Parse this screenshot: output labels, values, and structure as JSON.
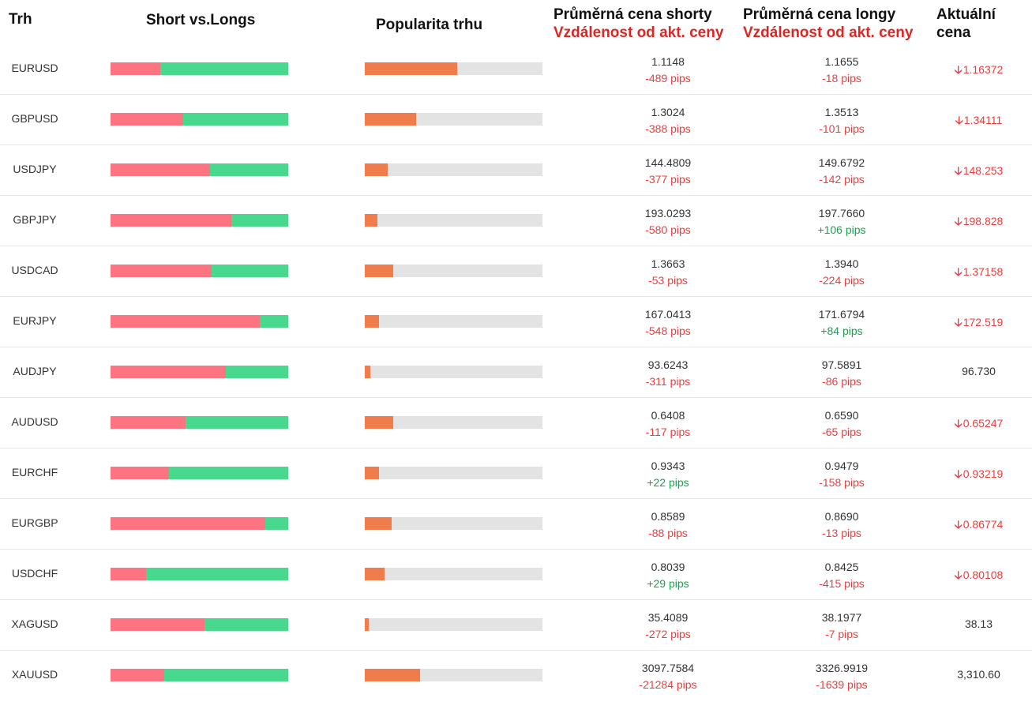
{
  "header": {
    "market": "Trh",
    "short_vs_longs": "Short vs.Longs",
    "popularity": "Popularita trhu",
    "avg_short_line1": "Průměrná cena shorty",
    "avg_short_line2": "Vzdálenost od akt. ceny",
    "avg_long_line1": "Průměrná cena longy",
    "avg_long_line2": "Vzdálenost od akt. ceny",
    "current_line1": "Aktuální",
    "current_line2": "cena"
  },
  "colors": {
    "short": "#fc7481",
    "long": "#48d98e",
    "popularity": "#f07c4c",
    "popularity_track": "#e3e3e3",
    "negative": "#ee3c3c",
    "positive": "#16a34a"
  },
  "rows": [
    {
      "market": "EURUSD",
      "short_pct": 28,
      "popularity_pct": 52,
      "avg_short": "1.1148",
      "short_pips": "-489 pips",
      "short_dir": "neg",
      "avg_long": "1.1655",
      "long_pips": "-18 pips",
      "long_dir": "neg",
      "current": "1.16372",
      "current_dir": "down",
      "current_icon": "arrow-down-icon"
    },
    {
      "market": "GBPUSD",
      "short_pct": 41,
      "popularity_pct": 29,
      "avg_short": "1.3024",
      "short_pips": "-388 pips",
      "short_dir": "neg",
      "avg_long": "1.3513",
      "long_pips": "-101 pips",
      "long_dir": "neg",
      "current": "1.34111",
      "current_dir": "down",
      "current_icon": "arrow-down-icon"
    },
    {
      "market": "USDJPY",
      "short_pct": 56,
      "popularity_pct": 13,
      "avg_short": "144.4809",
      "short_pips": "-377 pips",
      "short_dir": "neg",
      "avg_long": "149.6792",
      "long_pips": "-142 pips",
      "long_dir": "neg",
      "current": "148.253",
      "current_dir": "down",
      "current_icon": "arrow-down-icon"
    },
    {
      "market": "GBPJPY",
      "short_pct": 68,
      "popularity_pct": 7,
      "avg_short": "193.0293",
      "short_pips": "-580 pips",
      "short_dir": "neg",
      "avg_long": "197.7660",
      "long_pips": "+106 pips",
      "long_dir": "pos",
      "current": "198.828",
      "current_dir": "down",
      "current_icon": "arrow-down-icon"
    },
    {
      "market": "USDCAD",
      "short_pct": 57,
      "popularity_pct": 16,
      "avg_short": "1.3663",
      "short_pips": "-53 pips",
      "short_dir": "neg",
      "avg_long": "1.3940",
      "long_pips": "-224 pips",
      "long_dir": "neg",
      "current": "1.37158",
      "current_dir": "down",
      "current_icon": "arrow-down-icon"
    },
    {
      "market": "EURJPY",
      "short_pct": 84,
      "popularity_pct": 8,
      "avg_short": "167.0413",
      "short_pips": "-548 pips",
      "short_dir": "neg",
      "avg_long": "171.6794",
      "long_pips": "+84 pips",
      "long_dir": "pos",
      "current": "172.519",
      "current_dir": "down",
      "current_icon": "arrow-down-icon"
    },
    {
      "market": "AUDJPY",
      "short_pct": 65,
      "popularity_pct": 3,
      "avg_short": "93.6243",
      "short_pips": "-311 pips",
      "short_dir": "neg",
      "avg_long": "97.5891",
      "long_pips": "-86 pips",
      "long_dir": "neg",
      "current": "96.730",
      "current_dir": "none",
      "current_icon": ""
    },
    {
      "market": "AUDUSD",
      "short_pct": 42,
      "popularity_pct": 16,
      "avg_short": "0.6408",
      "short_pips": "-117 pips",
      "short_dir": "neg",
      "avg_long": "0.6590",
      "long_pips": "-65 pips",
      "long_dir": "neg",
      "current": "0.65247",
      "current_dir": "down",
      "current_icon": "arrow-down-icon"
    },
    {
      "market": "EURCHF",
      "short_pct": 33,
      "popularity_pct": 8,
      "avg_short": "0.9343",
      "short_pips": "+22 pips",
      "short_dir": "pos",
      "avg_long": "0.9479",
      "long_pips": "-158 pips",
      "long_dir": "neg",
      "current": "0.93219",
      "current_dir": "down",
      "current_icon": "arrow-down-icon"
    },
    {
      "market": "EURGBP",
      "short_pct": 87,
      "popularity_pct": 15,
      "avg_short": "0.8589",
      "short_pips": "-88 pips",
      "short_dir": "neg",
      "avg_long": "0.8690",
      "long_pips": "-13 pips",
      "long_dir": "neg",
      "current": "0.86774",
      "current_dir": "down",
      "current_icon": "arrow-down-icon"
    },
    {
      "market": "USDCHF",
      "short_pct": 20,
      "popularity_pct": 11,
      "avg_short": "0.8039",
      "short_pips": "+29 pips",
      "short_dir": "pos",
      "avg_long": "0.8425",
      "long_pips": "-415 pips",
      "long_dir": "neg",
      "current": "0.80108",
      "current_dir": "down",
      "current_icon": "arrow-down-icon"
    },
    {
      "market": "XAGUSD",
      "short_pct": 53,
      "popularity_pct": 2,
      "avg_short": "35.4089",
      "short_pips": "-272 pips",
      "short_dir": "neg",
      "avg_long": "38.1977",
      "long_pips": "-7 pips",
      "long_dir": "neg",
      "current": "38.13",
      "current_dir": "none",
      "current_icon": ""
    },
    {
      "market": "XAUUSD",
      "short_pct": 30,
      "popularity_pct": 31,
      "avg_short": "3097.7584",
      "short_pips": "-21284 pips",
      "short_dir": "neg",
      "avg_long": "3326.9919",
      "long_pips": "-1639 pips",
      "long_dir": "neg",
      "current": "3,310.60",
      "current_dir": "none",
      "current_icon": ""
    }
  ]
}
